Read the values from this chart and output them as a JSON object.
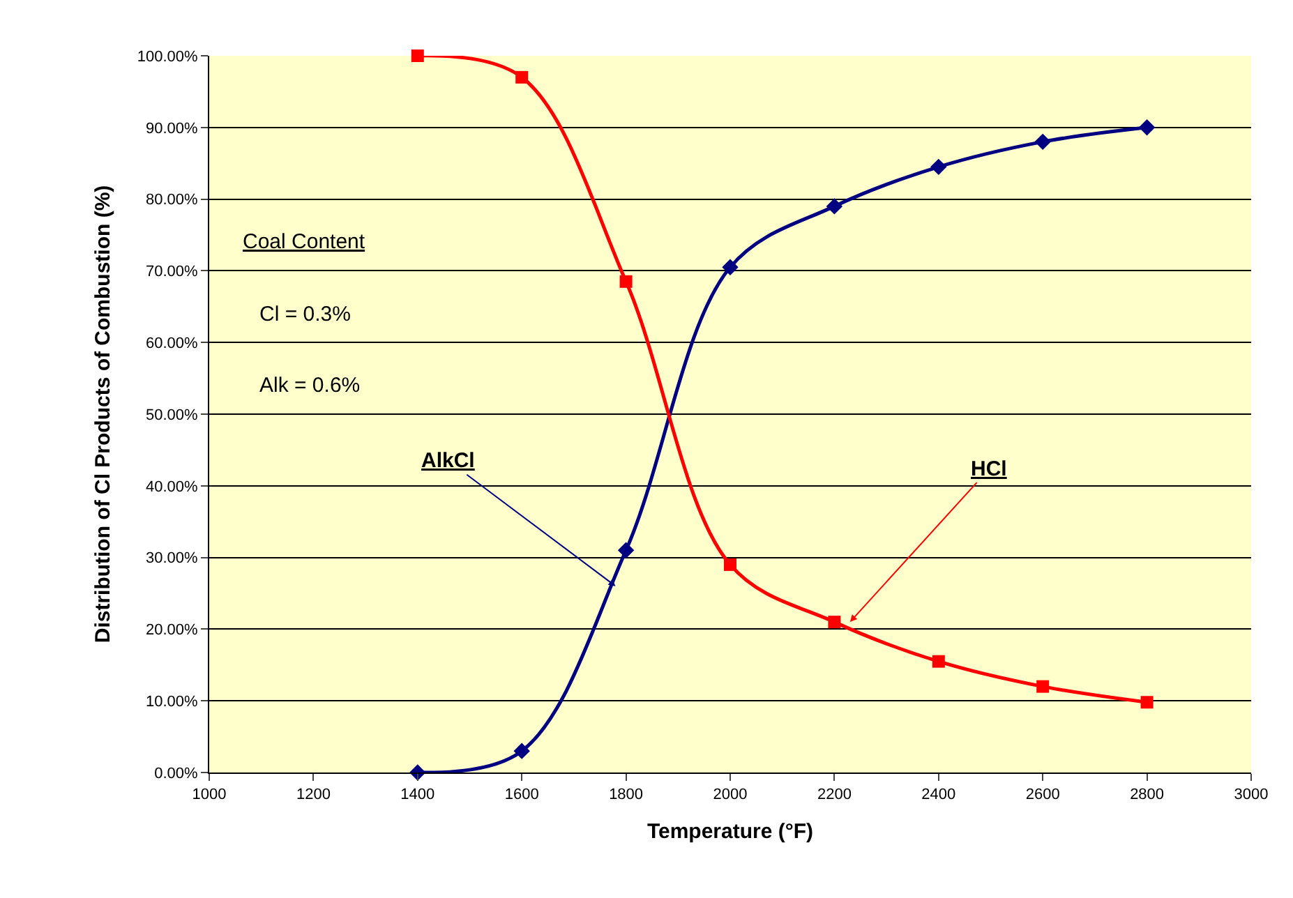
{
  "chart_data": {
    "type": "line",
    "xlabel": "Temperature (°F)",
    "ylabel": "Distribution of Cl Products of Combustion (%)",
    "x": [
      1400,
      1600,
      1800,
      2000,
      2200,
      2400,
      2600,
      2800
    ],
    "series": [
      {
        "color": "#000080",
        "values": [
          0,
          3,
          31,
          70.5,
          79,
          84.5,
          88,
          90
        ],
        "marker": "diamond"
      },
      {
        "color": "#ff0000",
        "values": [
          100,
          97,
          68.5,
          29,
          21,
          15.5,
          12,
          9.8
        ],
        "marker": "square"
      }
    ],
    "xlim": [
      1000,
      3000
    ],
    "xticks": [
      1000,
      1200,
      1400,
      1600,
      1800,
      2000,
      2200,
      2400,
      2600,
      2800,
      3000
    ],
    "ylim": [
      0,
      100
    ],
    "yticks": [
      {
        "value": 0,
        "label": "0.00%"
      },
      {
        "value": 10,
        "label": "10.00%"
      },
      {
        "value": 20,
        "label": "20.00%"
      },
      {
        "value": 30,
        "label": "30.00%"
      },
      {
        "value": 40,
        "label": "40.00%"
      },
      {
        "value": 50,
        "label": "50.00%"
      },
      {
        "value": 60,
        "label": "60.00%"
      },
      {
        "value": 70,
        "label": "70.00%"
      },
      {
        "value": 80,
        "label": "80.00%"
      },
      {
        "value": 90,
        "label": "90.00%"
      },
      {
        "value": 100,
        "label": "100.00%"
      }
    ],
    "grid": "y",
    "annotations": [
      "Coal Content",
      "Cl = 0.3%",
      "Alk = 0.6%",
      {
        "text": "AlkCl",
        "x": 1780,
        "y": 26
      },
      {
        "text": "HCl",
        "x": 2230,
        "y": 21
      }
    ]
  }
}
